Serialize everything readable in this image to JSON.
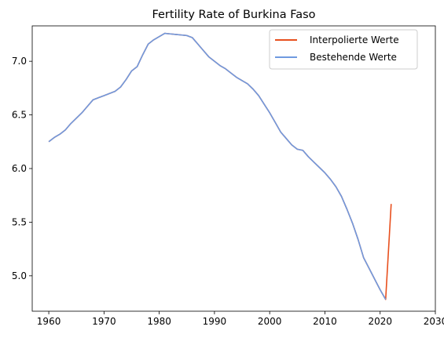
{
  "chart_data": {
    "type": "line",
    "title": "Fertility Rate of Burkina Faso",
    "xlabel": "",
    "ylabel": "",
    "xlim": [
      1957,
      2030
    ],
    "ylim": [
      4.67,
      7.33
    ],
    "xticks": [
      1960,
      1970,
      1980,
      1990,
      2000,
      2010,
      2020,
      2030
    ],
    "yticks": [
      5.0,
      5.5,
      6.0,
      6.5,
      7.0
    ],
    "ytick_labels": [
      "5.0",
      "5.5",
      "6.0",
      "6.5",
      "7.0"
    ],
    "grid": false,
    "legend_position": "top-right",
    "series": [
      {
        "name": "Interpolierte Werte",
        "color": "#e8501e",
        "x": [
          1960,
          1961,
          1962,
          1963,
          1964,
          1965,
          1966,
          1967,
          1968,
          1969,
          1970,
          1971,
          1972,
          1973,
          1974,
          1975,
          1976,
          1977,
          1978,
          1979,
          1980,
          1981,
          1982,
          1983,
          1984,
          1985,
          1986,
          1987,
          1988,
          1989,
          1990,
          1991,
          1992,
          1993,
          1994,
          1995,
          1996,
          1997,
          1998,
          1999,
          2000,
          2001,
          2002,
          2003,
          2004,
          2005,
          2006,
          2007,
          2008,
          2009,
          2010,
          2011,
          2012,
          2013,
          2014,
          2015,
          2016,
          2017,
          2018,
          2019,
          2020,
          2021,
          2022
        ],
        "y": [
          6.25,
          6.29,
          6.32,
          6.36,
          6.42,
          6.47,
          6.52,
          6.58,
          6.64,
          6.66,
          6.68,
          6.7,
          6.72,
          6.76,
          6.83,
          6.91,
          6.95,
          7.06,
          7.16,
          7.2,
          7.23,
          7.26,
          7.255,
          7.25,
          7.245,
          7.24,
          7.22,
          7.16,
          7.1,
          7.04,
          7.0,
          6.96,
          6.93,
          6.89,
          6.85,
          6.82,
          6.79,
          6.74,
          6.68,
          6.6,
          6.52,
          6.43,
          6.34,
          6.28,
          6.22,
          6.18,
          6.17,
          6.11,
          6.06,
          6.01,
          5.96,
          5.9,
          5.83,
          5.74,
          5.62,
          5.49,
          5.34,
          5.17,
          5.07,
          4.97,
          4.87,
          4.78,
          5.67
        ]
      },
      {
        "name": "Bestehende Werte",
        "color": "#6f9ae0",
        "x": [
          1960,
          1961,
          1962,
          1963,
          1964,
          1965,
          1966,
          1967,
          1968,
          1969,
          1970,
          1971,
          1972,
          1973,
          1974,
          1975,
          1976,
          1977,
          1978,
          1979,
          1980,
          1981,
          1982,
          1983,
          1984,
          1985,
          1986,
          1987,
          1988,
          1989,
          1990,
          1991,
          1992,
          1993,
          1994,
          1995,
          1996,
          1997,
          1998,
          1999,
          2000,
          2001,
          2002,
          2003,
          2004,
          2005,
          2006,
          2007,
          2008,
          2009,
          2010,
          2011,
          2012,
          2013,
          2014,
          2015,
          2016,
          2017,
          2018,
          2019,
          2020,
          2021
        ],
        "y": [
          6.25,
          6.29,
          6.32,
          6.36,
          6.42,
          6.47,
          6.52,
          6.58,
          6.64,
          6.66,
          6.68,
          6.7,
          6.72,
          6.76,
          6.83,
          6.91,
          6.95,
          7.06,
          7.16,
          7.2,
          7.23,
          7.26,
          7.255,
          7.25,
          7.245,
          7.24,
          7.22,
          7.16,
          7.1,
          7.04,
          7.0,
          6.96,
          6.93,
          6.89,
          6.85,
          6.82,
          6.79,
          6.74,
          6.68,
          6.6,
          6.52,
          6.43,
          6.34,
          6.28,
          6.22,
          6.18,
          6.17,
          6.11,
          6.06,
          6.01,
          5.96,
          5.9,
          5.83,
          5.74,
          5.62,
          5.49,
          5.34,
          5.17,
          5.07,
          4.97,
          4.87,
          4.78
        ]
      }
    ]
  }
}
